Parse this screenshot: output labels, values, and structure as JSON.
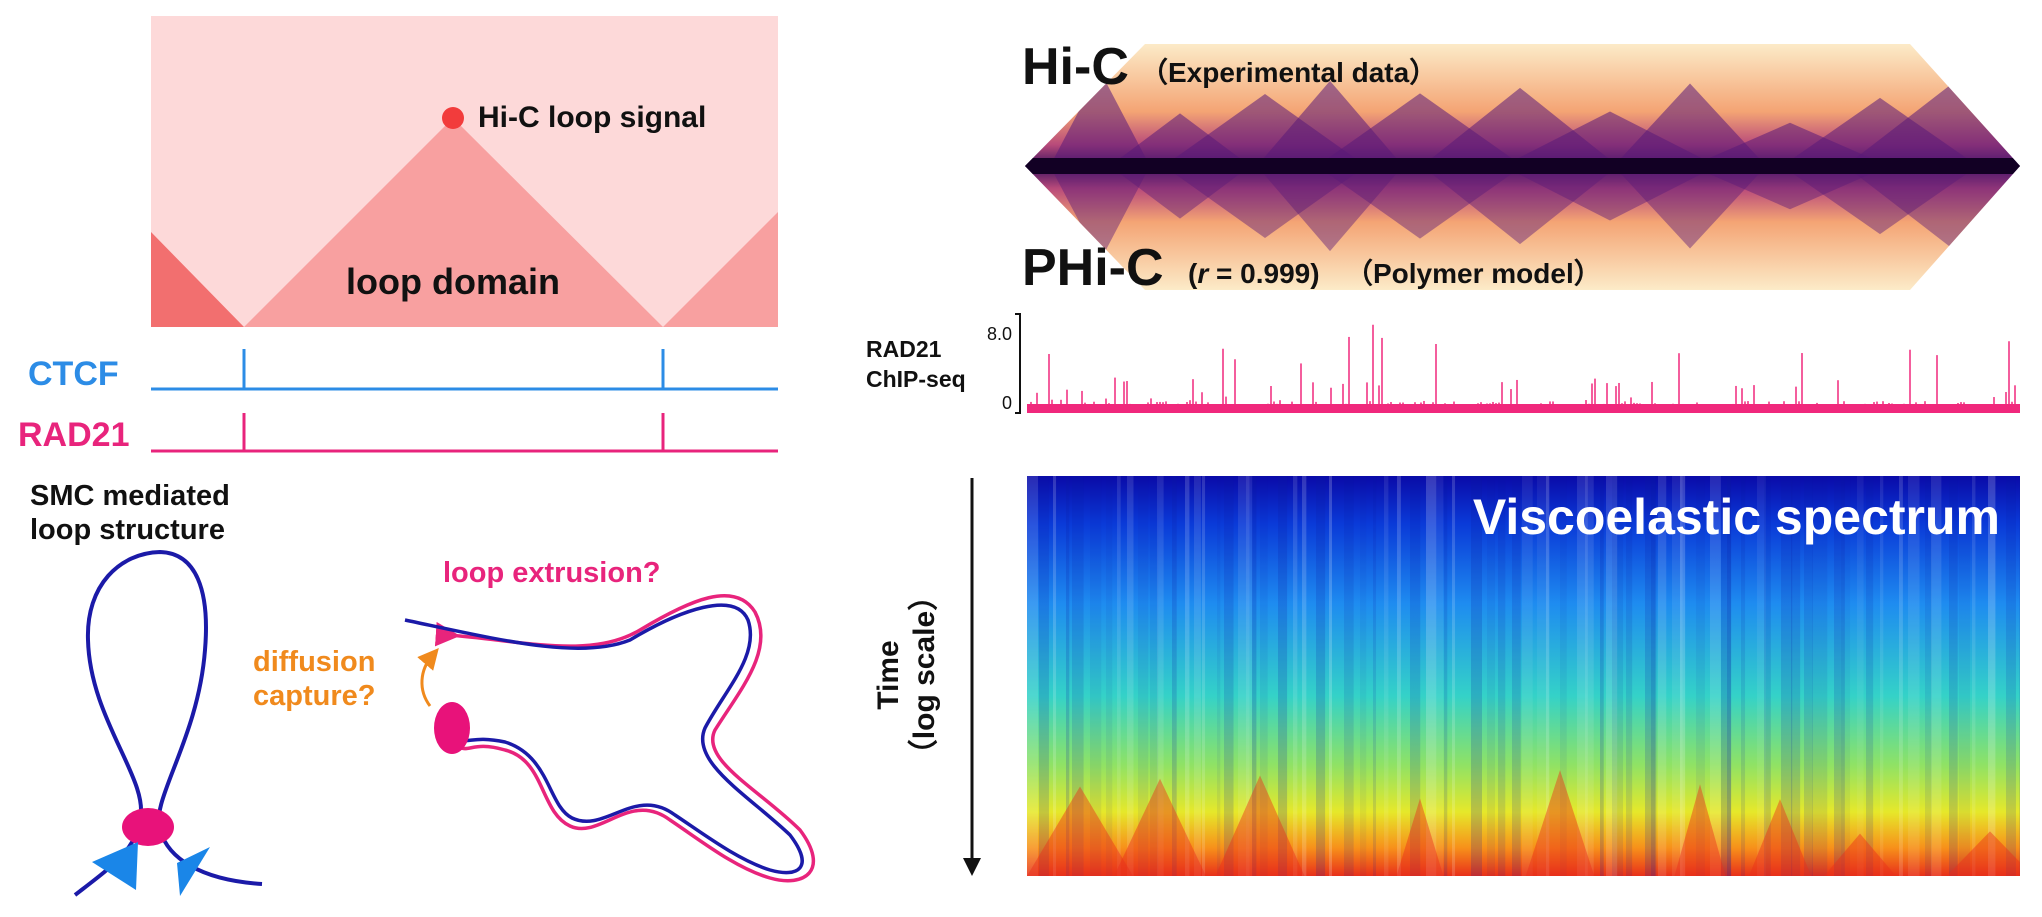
{
  "left_panel": {
    "loop_signal_label": "Hi-C loop signal",
    "loop_domain_label": "loop domain",
    "ctcf_label": "CTCF",
    "rad21_label": "RAD21",
    "smc_title_line1": "SMC mediated",
    "smc_title_line2": "loop structure",
    "extrusion_label": "loop extrusion?",
    "diffusion_line1": "diffusion",
    "diffusion_line2": "capture?",
    "colors": {
      "domain_bg": "#fdd9d9",
      "domain_triangle": "#f8a0a0",
      "side_triangle": "#f26f6f",
      "loop_dot": "#f23c3c",
      "ctcf": "#2c8ce6",
      "rad21": "#e8247c",
      "chromatin": "#1b1aa8",
      "diffusion": "#f08a1d",
      "cohesin": "#e8127a",
      "ctcf_protein": "#1a86e8"
    }
  },
  "right_panel": {
    "hic_title": "Hi-C",
    "hic_subtitle": "（Experimental data）",
    "phic_title": "PHi-C",
    "phic_r_prefix": "(",
    "phic_r_var": "r",
    "phic_r_value": " = 0.999)",
    "phic_subtitle": "（Polymer model）",
    "chip_label_line1": "RAD21",
    "chip_label_line2": "ChIP-seq",
    "chip_max": "8.0",
    "chip_min": "0",
    "spectrum_title": "Viscoelastic spectrum",
    "time_label_line1": "Time",
    "time_label_line2": "（log scale）",
    "colors": {
      "chip_signal": "#f0287c",
      "hic_low": "#fbe7c3",
      "hic_high": "#120024"
    }
  }
}
